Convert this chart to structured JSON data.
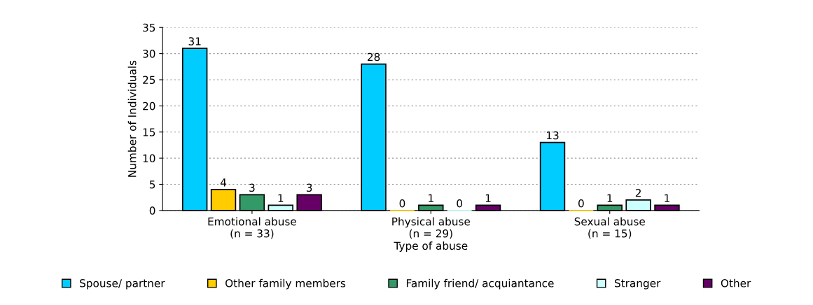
{
  "chart_data": {
    "type": "bar",
    "xlabel": "Type of abuse",
    "ylabel": "Number of Individuals",
    "categories": [
      "Emotional abuse\n(n = 33)",
      "Physical abuse\n(n = 29)",
      "Sexual abuse\n(n = 15)"
    ],
    "series": [
      {
        "name": "Spouse/ partner",
        "color": "#00ccff",
        "values": [
          31,
          28,
          13
        ]
      },
      {
        "name": "Other family members",
        "color": "#ffcc00",
        "values": [
          4,
          0,
          0
        ]
      },
      {
        "name": "Family friend/ acquiantance",
        "color": "#339966",
        "values": [
          3,
          1,
          1
        ]
      },
      {
        "name": "Stranger",
        "color": "#ccffff",
        "values": [
          1,
          0,
          2
        ]
      },
      {
        "name": "Other",
        "color": "#660066",
        "values": [
          3,
          1,
          1
        ]
      }
    ],
    "ylim": [
      0,
      35
    ],
    "yticks": [
      0,
      5,
      10,
      15,
      20,
      25,
      30,
      35
    ],
    "grid": "y",
    "legend": "bottom",
    "data_labels": true
  }
}
